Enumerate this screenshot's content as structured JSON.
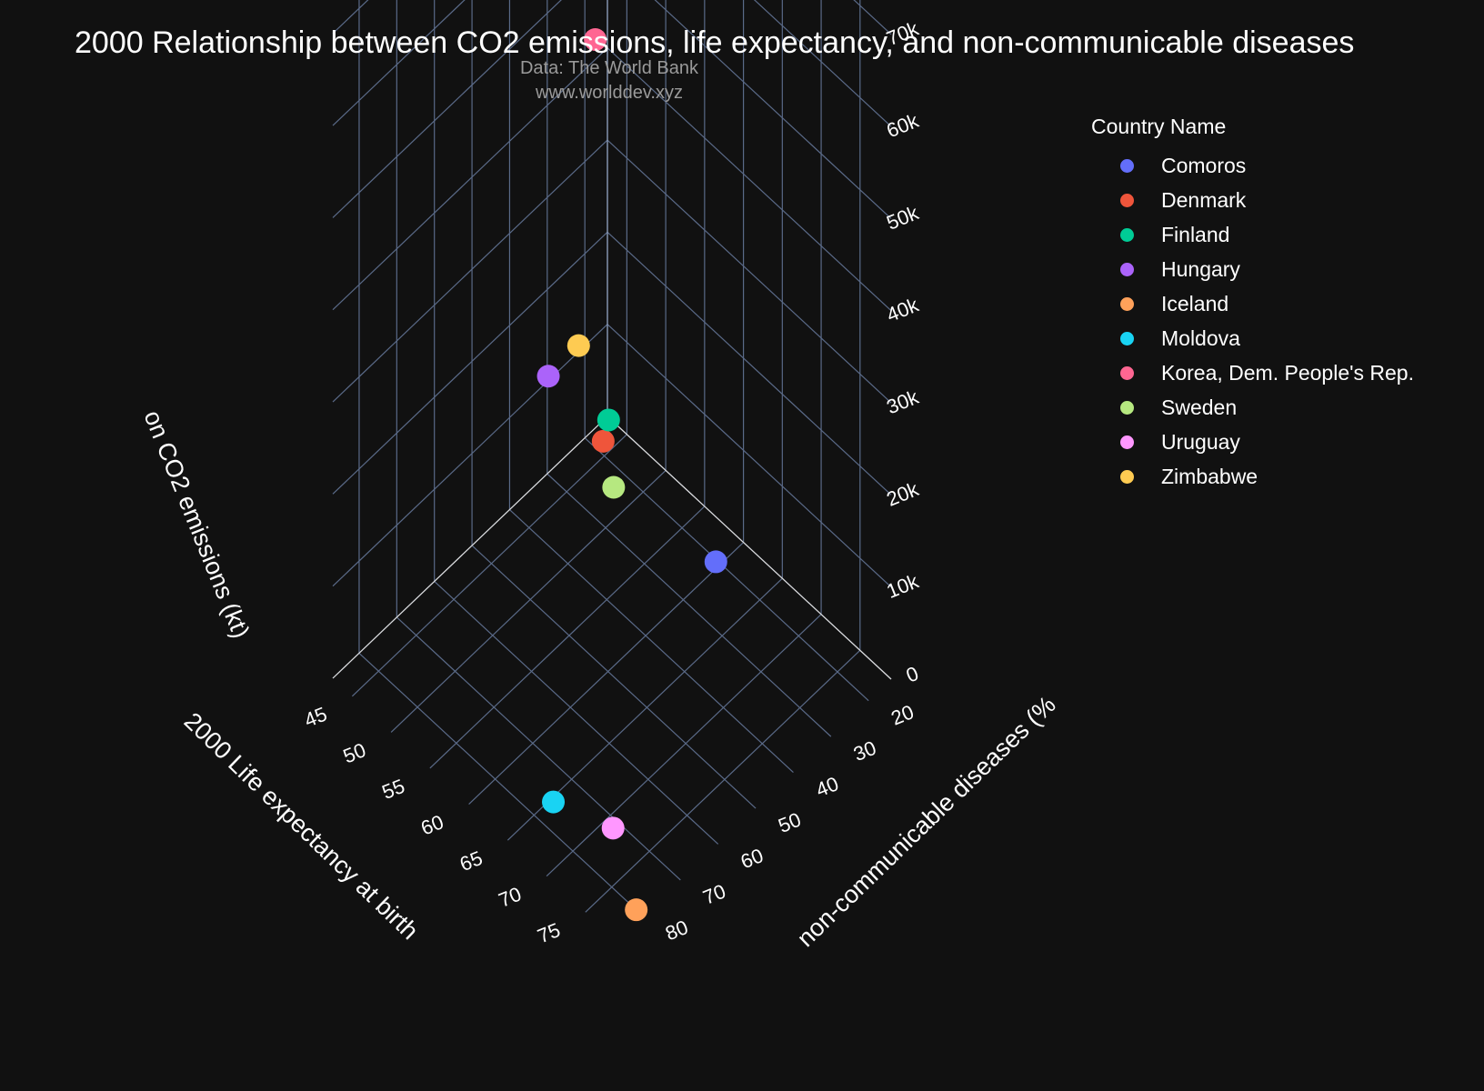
{
  "title": "2000 Relationship between CO2 emissions, life expectancy, and non-communicable diseases",
  "subtitle_line1": "Data: The World Bank",
  "subtitle_line2": "www.worlddev.xyz",
  "legend": {
    "title": "Country Name",
    "items": [
      {
        "label": "Comoros",
        "color": "#636efa"
      },
      {
        "label": "Denmark",
        "color": "#ef553b"
      },
      {
        "label": "Finland",
        "color": "#00cc96"
      },
      {
        "label": "Hungary",
        "color": "#ab63fa"
      },
      {
        "label": "Iceland",
        "color": "#ffa15a"
      },
      {
        "label": "Moldova",
        "color": "#19d3f3"
      },
      {
        "label": "Korea, Dem. People's Rep.",
        "color": "#ff6692"
      },
      {
        "label": "Sweden",
        "color": "#b6e880"
      },
      {
        "label": "Uruguay",
        "color": "#ff97ff"
      },
      {
        "label": "Zimbabwe",
        "color": "#fecb52"
      }
    ]
  },
  "chart_data": {
    "type": "scatter3d",
    "title": "2000 Relationship between CO2 emissions, life expectancy, and non-communicable diseases",
    "axes": {
      "x": {
        "label": "2000 Life expectancy at birth",
        "ticks": [
          45,
          50,
          55,
          60,
          65,
          70,
          75
        ],
        "range": [
          42.5,
          79
        ]
      },
      "y": {
        "label": "non-communicable diseases (%",
        "ticks": [
          20,
          30,
          40,
          50,
          60,
          70,
          80
        ],
        "range": [
          14,
          87
        ]
      },
      "z": {
        "label": "on CO2 emissions (kt)",
        "ticks": [
          "0",
          "10k",
          "20k",
          "30k",
          "40k",
          "50k",
          "60k",
          "70k"
        ],
        "tick_values": [
          0,
          10000,
          20000,
          30000,
          40000,
          50000,
          60000,
          70000
        ],
        "range": [
          0,
          76000
        ]
      }
    },
    "series": [
      {
        "name": "Comoros",
        "color": "#636efa",
        "x": 59.6,
        "y": 20.5,
        "z": 110
      },
      {
        "name": "Denmark",
        "color": "#ef553b",
        "x": 76.9,
        "y": 86.2,
        "z": 52300
      },
      {
        "name": "Finland",
        "color": "#00cc96",
        "x": 77.5,
        "y": 86.0,
        "z": 55000
      },
      {
        "name": "Hungary",
        "color": "#ab63fa",
        "x": 71.2,
        "y": 89.0,
        "z": 56000
      },
      {
        "name": "Iceland",
        "color": "#ffa15a",
        "x": 79.6,
        "y": 83.0,
        "z": 2300
      },
      {
        "name": "Moldova",
        "color": "#19d3f3",
        "x": 67.0,
        "y": 79.0,
        "z": 2600
      },
      {
        "name": "Korea, Dem. People's Rep.",
        "color": "#ff6692",
        "x": 63.2,
        "y": 60.0,
        "z": 75000
      },
      {
        "name": "Sweden",
        "color": "#b6e880",
        "x": 79.6,
        "y": 89.0,
        "z": 50500
      },
      {
        "name": "Uruguay",
        "color": "#ff97ff",
        "x": 74.2,
        "y": 78.0,
        "z": 5000
      },
      {
        "name": "Zimbabwe",
        "color": "#fecb52",
        "x": 44.6,
        "y": 26.0,
        "z": 14000
      }
    ]
  }
}
